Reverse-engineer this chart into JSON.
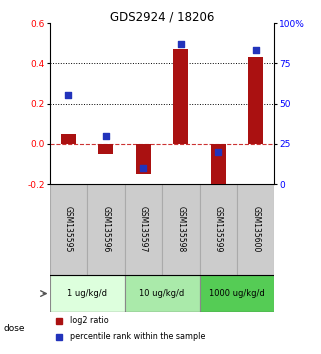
{
  "title": "GDS2924 / 18206",
  "samples": [
    "GSM135595",
    "GSM135596",
    "GSM135597",
    "GSM135598",
    "GSM135599",
    "GSM135600"
  ],
  "log2_ratio": [
    0.05,
    -0.05,
    -0.15,
    0.47,
    -0.23,
    0.43
  ],
  "percentile_rank": [
    55,
    30,
    10,
    87,
    20,
    83
  ],
  "ylim_left": [
    -0.2,
    0.6
  ],
  "ylim_right": [
    0,
    100
  ],
  "yticks_left": [
    -0.2,
    0.0,
    0.2,
    0.4,
    0.6
  ],
  "yticks_right": [
    0,
    25,
    50,
    75,
    100
  ],
  "yticklabels_right": [
    "0",
    "25",
    "50",
    "75",
    "100%"
  ],
  "bar_color": "#aa1111",
  "dot_color": "#2233bb",
  "zero_line_color": "#cc3333",
  "dose_groups": [
    {
      "label": "1 ug/kg/d",
      "samples": [
        0,
        1
      ],
      "color": "#ddffdd"
    },
    {
      "label": "10 ug/kg/d",
      "samples": [
        2,
        3
      ],
      "color": "#aaeaaa"
    },
    {
      "label": "1000 ug/kg/d",
      "samples": [
        4,
        5
      ],
      "color": "#55cc55"
    }
  ],
  "legend_red_label": "log2 ratio",
  "legend_blue_label": "percentile rank within the sample",
  "dose_label": "dose",
  "background_color": "#ffffff",
  "plot_bg_color": "#ffffff",
  "sample_box_color": "#cccccc",
  "bar_width": 0.4
}
